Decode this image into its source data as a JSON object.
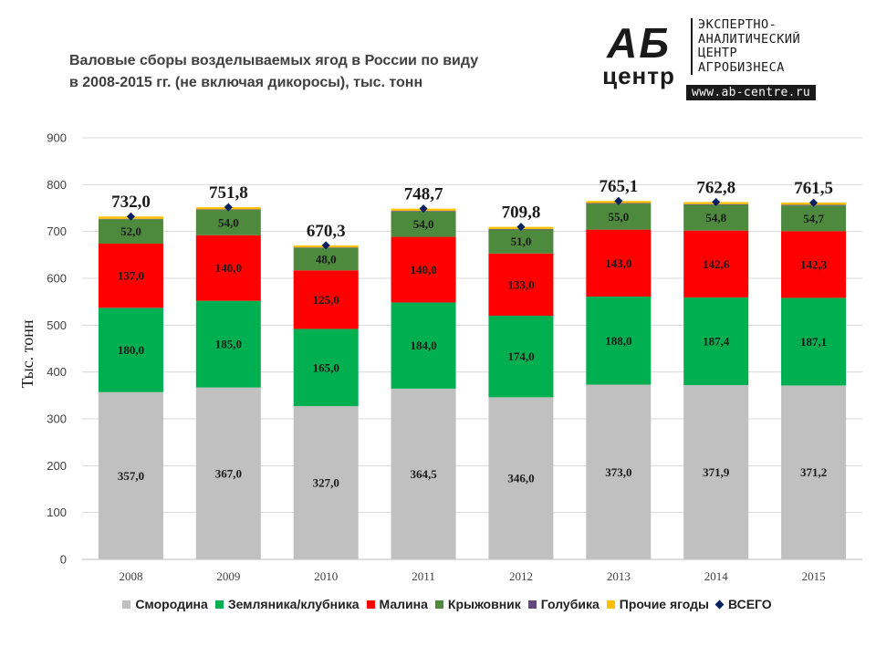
{
  "title": {
    "line1": "Валовые сборы возделываемых ягод в России по виду",
    "line2": "в 2008-2015 гг. (не включая дикоросы), тыс. тонн"
  },
  "logo": {
    "mark_top": "АБ",
    "mark_bottom": "центр",
    "text_lines": [
      "ЭКСПЕРТНО-",
      "АНАЛИТИЧЕСКИЙ",
      "ЦЕНТР",
      "АГРОБИЗНЕСА"
    ],
    "url": "www.ab-centre.ru"
  },
  "chart_data": {
    "type": "bar",
    "stacked": true,
    "categories": [
      "2008",
      "2009",
      "2010",
      "2011",
      "2012",
      "2013",
      "2014",
      "2015"
    ],
    "ylabel": "Тыс. тонн",
    "ylim": [
      0,
      900
    ],
    "yticks": [
      0,
      100,
      200,
      300,
      400,
      500,
      600,
      700,
      800,
      900
    ],
    "grid": true,
    "legend_position": "bottom",
    "series": [
      {
        "name": "Смородина",
        "color": "#c0c0c0",
        "values": [
          357.0,
          367.0,
          327.0,
          364.5,
          346.0,
          373.0,
          371.9,
          371.2
        ],
        "labels": [
          "357,0",
          "367,0",
          "327,0",
          "364,5",
          "346,0",
          "373,0",
          "371,9",
          "371,2"
        ]
      },
      {
        "name": "Земляника/клубника",
        "color": "#00b050",
        "values": [
          180.0,
          185.0,
          165.0,
          184.0,
          174.0,
          188.0,
          187.4,
          187.1
        ],
        "labels": [
          "180,0",
          "185,0",
          "165,0",
          "184,0",
          "174,0",
          "188,0",
          "187,4",
          "187,1"
        ]
      },
      {
        "name": "Малина",
        "color": "#ff0000",
        "values": [
          137.0,
          140.0,
          125.0,
          140.0,
          133.0,
          143.0,
          142.6,
          142.3
        ],
        "labels": [
          "137,0",
          "140,0",
          "125,0",
          "140,0",
          "133,0",
          "143,0",
          "142,6",
          "142,3"
        ]
      },
      {
        "name": "Крыжовник",
        "color": "#4e8a3e",
        "values": [
          52.0,
          54.0,
          48.0,
          54.0,
          51.0,
          55.0,
          54.8,
          54.7
        ],
        "labels": [
          "52,0",
          "54,0",
          "48,0",
          "54,0",
          "51,0",
          "55,0",
          "54,8",
          "54,7"
        ]
      },
      {
        "name": "Голубика",
        "color": "#604a7b",
        "values": [
          1.0,
          1.3,
          1.0,
          1.5,
          1.3,
          1.6,
          1.6,
          1.7
        ]
      },
      {
        "name": "Прочие ягоды",
        "color": "#ffc000",
        "values": [
          5.0,
          4.5,
          4.3,
          4.7,
          4.5,
          4.5,
          4.5,
          4.5
        ]
      }
    ],
    "total": {
      "name": "ВСЕГО",
      "color": "#002060",
      "values": [
        732.0,
        751.8,
        670.3,
        748.7,
        709.8,
        765.1,
        762.8,
        761.5
      ],
      "labels": [
        "732,0",
        "751,8",
        "670,3",
        "748,7",
        "709,8",
        "765,1",
        "762,8",
        "761,5"
      ]
    }
  }
}
